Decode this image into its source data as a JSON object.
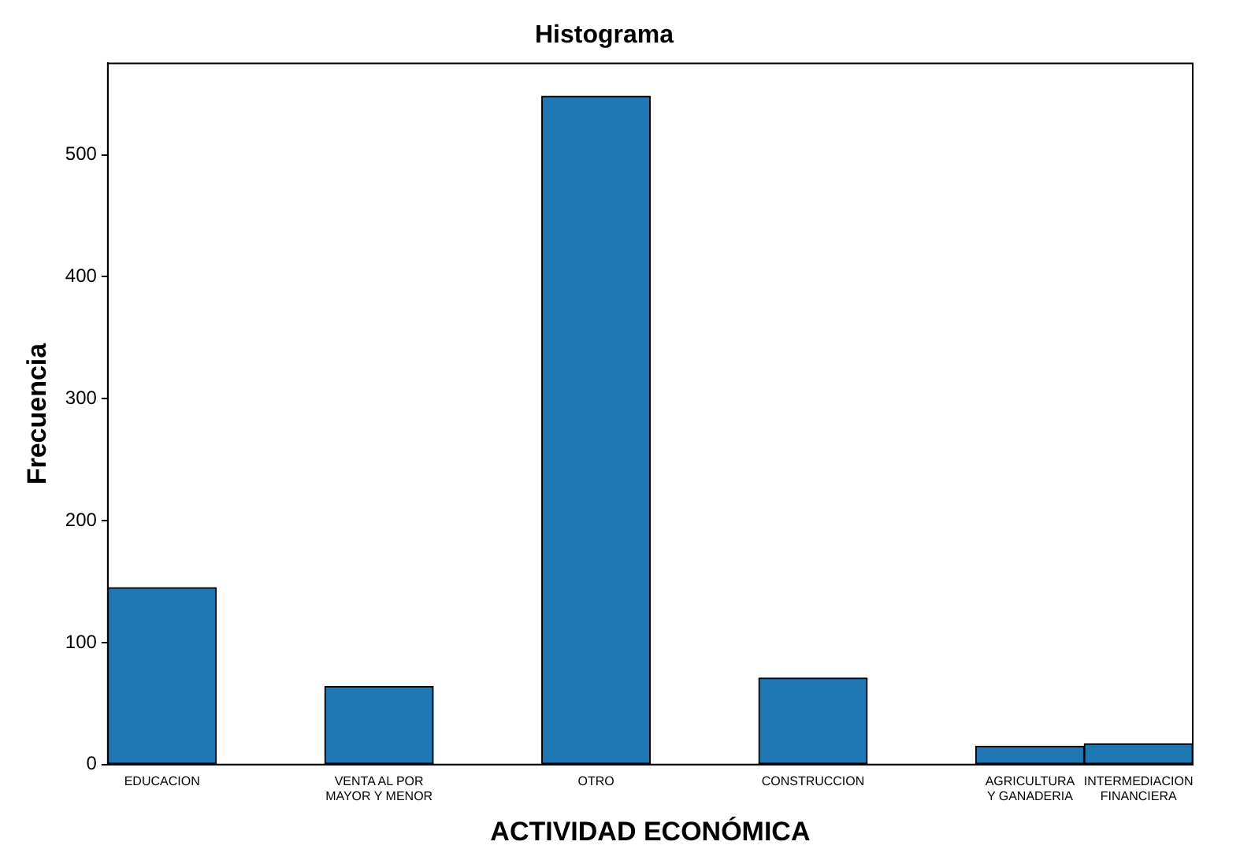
{
  "chart_data": {
    "type": "bar",
    "title": "Histograma",
    "xlabel": "ACTIVIDAD ECONÓMICA",
    "ylabel": "Frecuencia",
    "categories": [
      "EDUCACION",
      null,
      "VENTA AL POR MAYOR Y MENOR",
      null,
      "OTRO",
      null,
      "CONSTRUCCION",
      null,
      "AGRICULTURA Y GANADERIA",
      "INTERMEDIACION FINANCIERA"
    ],
    "values": [
      145,
      0,
      64,
      0,
      548,
      0,
      71,
      0,
      15,
      17
    ],
    "color": "#1f77b4",
    "ylim": [
      0,
      575
    ],
    "yticks": [
      0,
      100,
      200,
      300,
      400,
      500
    ],
    "grid": false,
    "legend": false
  }
}
